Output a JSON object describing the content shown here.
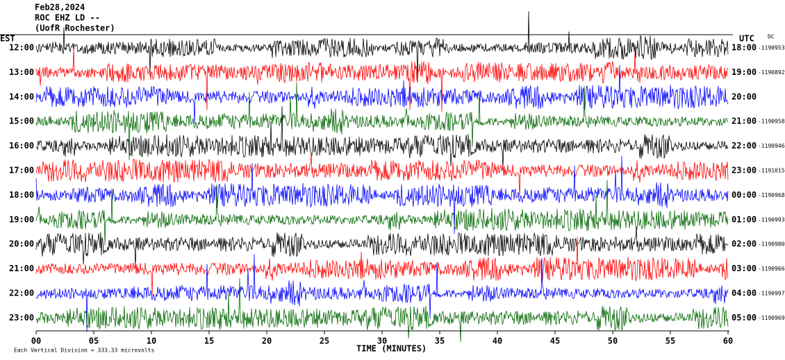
{
  "header": {
    "date": "Feb28,2024",
    "station": "ROC EHZ LD --",
    "location": "(UofR Rochester)"
  },
  "left_zone": "EST",
  "right_zone": "UTC",
  "dc_label": "DC",
  "rows": [
    {
      "est": "12:00",
      "utc": "18:00",
      "dc": "-1190953",
      "color": "#000000"
    },
    {
      "est": "13:00",
      "utc": "19:00",
      "dc": "-1190892",
      "color": "#ff0000"
    },
    {
      "est": "14:00",
      "utc": "20:00",
      "dc": null,
      "color": "#0000ff"
    },
    {
      "est": "15:00",
      "utc": "21:00",
      "dc": "-1190958",
      "color": "#006600"
    },
    {
      "est": "16:00",
      "utc": "22:00",
      "dc": "-1190946",
      "color": "#000000"
    },
    {
      "est": "17:00",
      "utc": "23:00",
      "dc": "-1191015",
      "color": "#ff0000"
    },
    {
      "est": "18:00",
      "utc": "00:00",
      "dc": "-1190968",
      "color": "#0000ff"
    },
    {
      "est": "19:00",
      "utc": "01:00",
      "dc": "-1190993",
      "color": "#006600"
    },
    {
      "est": "20:00",
      "utc": "02:00",
      "dc": "-1190980",
      "color": "#000000"
    },
    {
      "est": "21:00",
      "utc": "03:00",
      "dc": "-1190966",
      "color": "#ff0000"
    },
    {
      "est": "22:00",
      "utc": "04:00",
      "dc": "-1190997",
      "color": "#0000ff"
    },
    {
      "est": "23:00",
      "utc": "05:00",
      "dc": "-1190969",
      "color": "#006600"
    }
  ],
  "x_axis": {
    "ticks": [
      "00",
      "05",
      "10",
      "15",
      "20",
      "25",
      "30",
      "35",
      "40",
      "45",
      "50",
      "55",
      "60"
    ],
    "label": "TIME (MINUTES)"
  },
  "footer": "Each Vertical Division =  333.33 microvolts"
}
